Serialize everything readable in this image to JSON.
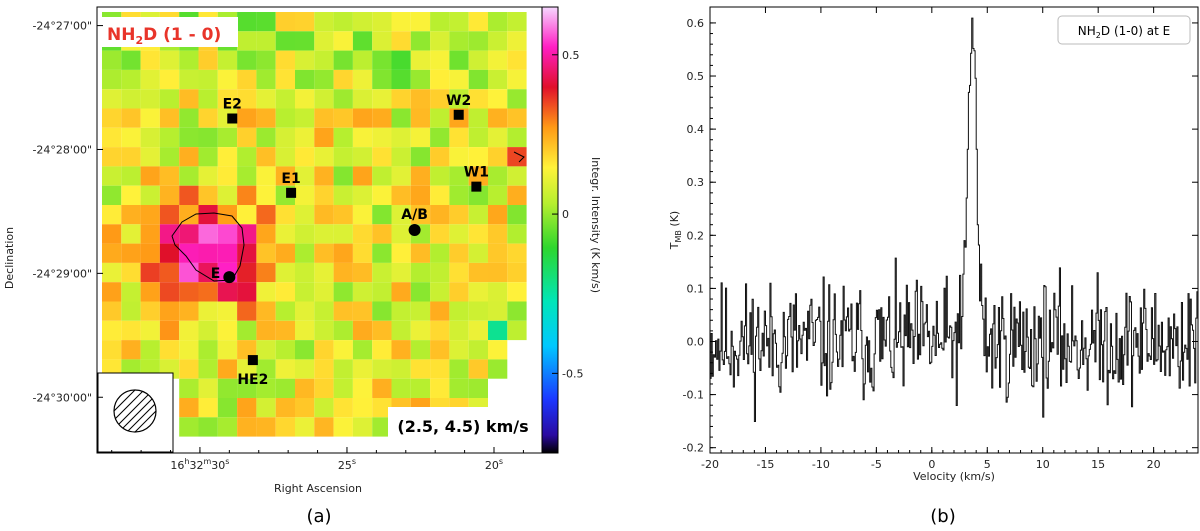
{
  "chart_data": [
    {
      "type": "heatmap",
      "panel_caption": "(a)",
      "title": "NH2D (1 - 0)",
      "title_parts": {
        "main": "NH",
        "sub": "2",
        "rest": "D (1 - 0)"
      },
      "velocity_range_label": "(2.5, 4.5) km/s",
      "xlabel": "Right Ascension",
      "ylabel": "Declination",
      "x_ticks": [
        {
          "h": "16",
          "m": "32",
          "s": "30",
          "sval": 30
        },
        {
          "s": "25",
          "sval": 25
        },
        {
          "s": "20",
          "sval": 20
        }
      ],
      "y_ticks": [
        "-24°27'00\"",
        "-24°28'00\"",
        "-24°29'00\"",
        "-24°30'00\""
      ],
      "y_tick_values_arcmin": [
        27,
        28,
        29,
        30
      ],
      "ra_range_s": [
        33.5,
        18.3
      ],
      "dec_range_arcmin": [
        26.85,
        30.45
      ],
      "colorbar": {
        "label": "Integr. Intensity (K km/s)",
        "vmin": -0.75,
        "vmax": 0.65,
        "ticks": [
          0.5,
          0,
          -0.5
        ],
        "tick_labels": [
          "0.5",
          "0",
          "-0.5"
        ]
      },
      "markers": [
        {
          "name": "E2",
          "ra_s": 28.9,
          "dec_arcmin": 27.75,
          "shape": "square"
        },
        {
          "name": "W2",
          "ra_s": 21.2,
          "dec_arcmin": 27.72,
          "shape": "square"
        },
        {
          "name": "E1",
          "ra_s": 26.9,
          "dec_arcmin": 28.35,
          "shape": "square"
        },
        {
          "name": "W1",
          "ra_s": 20.6,
          "dec_arcmin": 28.3,
          "shape": "square"
        },
        {
          "name": "A/B",
          "ra_s": 22.7,
          "dec_arcmin": 28.65,
          "shape": "circle"
        },
        {
          "name": "E",
          "ra_s": 29.0,
          "dec_arcmin": 29.03,
          "shape": "circle"
        },
        {
          "name": "HE2",
          "ra_s": 28.2,
          "dec_arcmin": 29.7,
          "shape": "square"
        }
      ],
      "map_seed": 7,
      "peak": {
        "ra_s": 29.7,
        "dec_arcmin": 28.85,
        "value": 0.62
      }
    },
    {
      "type": "line",
      "panel_caption": "(b)",
      "legend": "NH2D (1-0) at E",
      "legend_parts": {
        "main": "NH",
        "sub": "2",
        "rest": "D (1-0) at E"
      },
      "xlabel": "Velocity (km/s)",
      "ylabel": "T",
      "ylabel_sub": "MB",
      "ylabel_unit": " (K)",
      "xlim": [
        -20,
        24
      ],
      "ylim": [
        -0.21,
        0.63
      ],
      "x_ticks": [
        -20,
        -15,
        -10,
        -5,
        0,
        5,
        10,
        15,
        20
      ],
      "y_ticks": [
        -0.2,
        -0.1,
        0.0,
        0.1,
        0.2,
        0.3,
        0.4,
        0.5,
        0.6
      ],
      "y_tick_labels": [
        "-0.2",
        "-0.1",
        "0.0",
        "0.1",
        "0.2",
        "0.3",
        "0.4",
        "0.5",
        "0.6"
      ],
      "channel_width_kms": 0.1,
      "noise_seed": 11,
      "line": {
        "center_kms": 3.6,
        "peak_K": 0.6,
        "fwhm_kms": 0.9
      }
    }
  ]
}
